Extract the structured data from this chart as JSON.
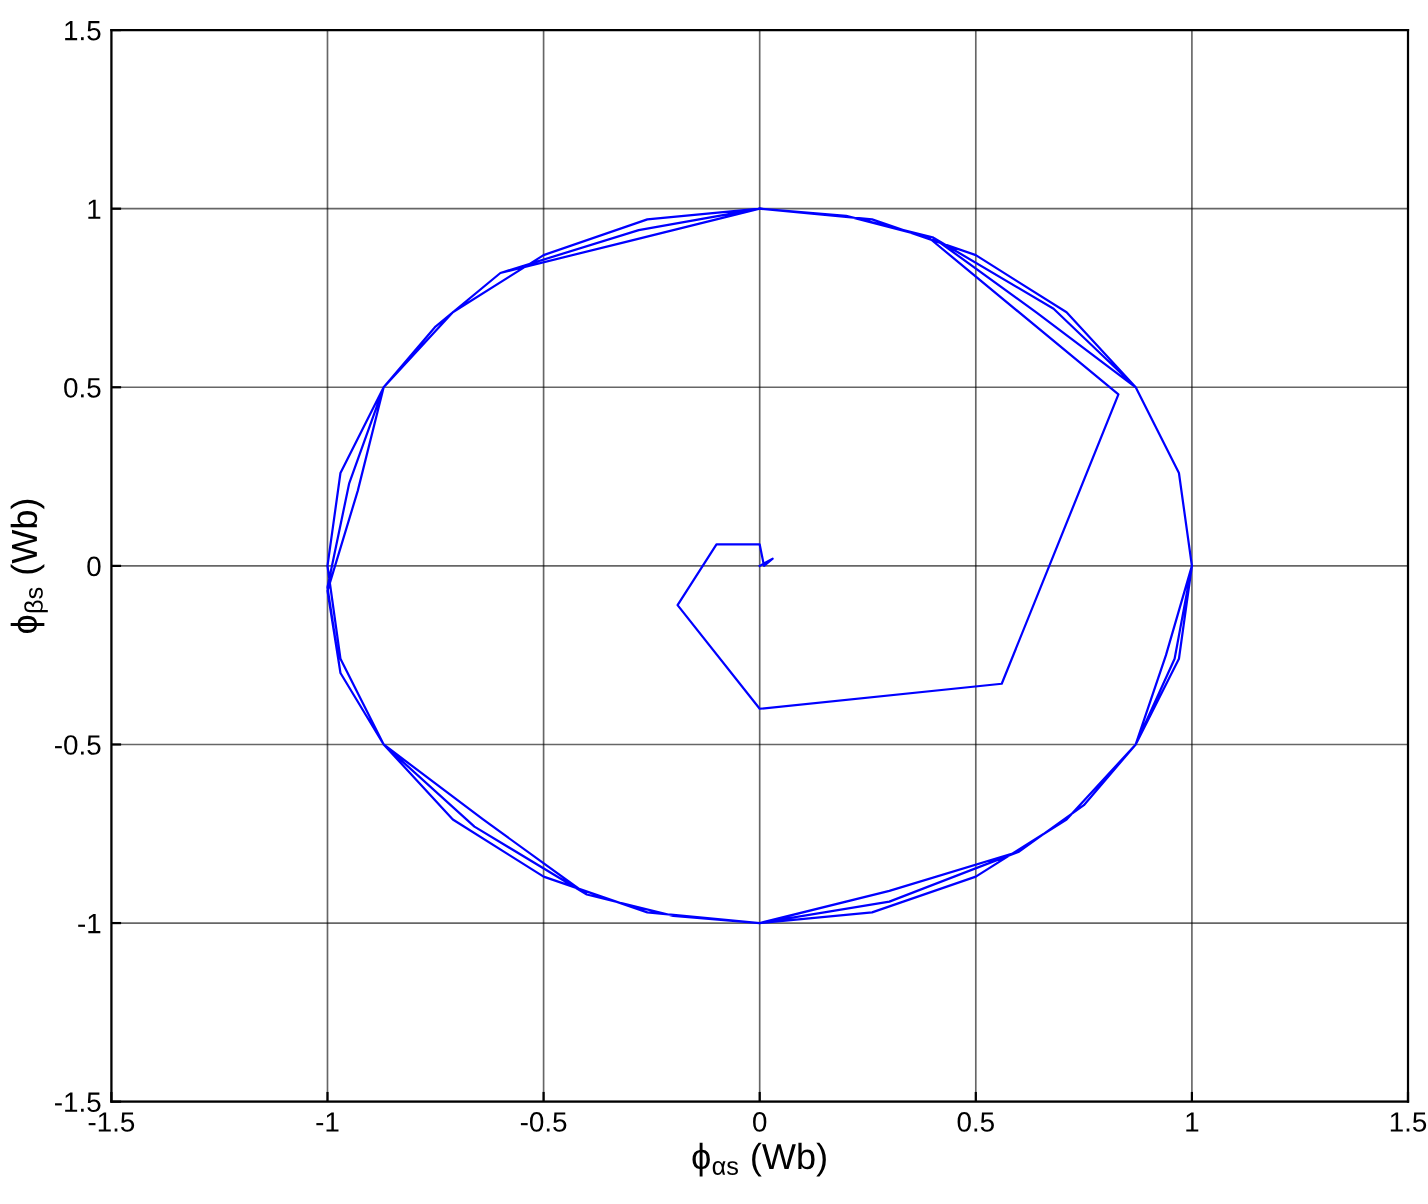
{
  "chart_data": {
    "type": "line",
    "xlabel": "ϕ$_{αs}$ (Wb)",
    "ylabel": "ϕ$_{βs}$ (Wb)",
    "xlim": [
      -1.5,
      1.5
    ],
    "ylim": [
      -1.5,
      1.5
    ],
    "xticks": [
      -1.5,
      -1,
      -0.5,
      0,
      0.5,
      1,
      1.5
    ],
    "yticks": [
      -1.5,
      -1,
      -0.5,
      0,
      0.5,
      1,
      1.5
    ],
    "grid": true,
    "marker": "none",
    "line_style": "solid",
    "series": [
      {
        "color": "#0000ff",
        "x": [
          0,
          0.03,
          0.01,
          0,
          -0.1,
          -0.19,
          0,
          0.56,
          0.83,
          0.39,
          0.2,
          0,
          -0.3,
          -0.6,
          -0.75,
          -0.87,
          -0.93,
          -1,
          -0.97,
          -0.87,
          -0.64,
          -0.4,
          -0.2,
          0,
          0.3,
          0.6,
          0.75,
          0.87,
          0.94,
          1,
          0.97,
          0.87,
          0.64,
          0.4,
          0.2,
          0,
          -0.28,
          -0.6,
          -0.75,
          -0.87,
          -0.95,
          -1,
          -0.97,
          -0.87,
          -0.66,
          -0.4,
          -0.2,
          0,
          0.3,
          0.6,
          0.75,
          0.87,
          0.96,
          1,
          0.97,
          0.87,
          0.68,
          0.4,
          0.2,
          0,
          -0.26,
          -0.5,
          -0.71,
          -0.87,
          -0.97,
          -1,
          -0.97,
          -0.87,
          -0.71,
          -0.5,
          -0.26,
          0,
          0.26,
          0.5,
          0.71,
          0.87,
          0.97,
          1,
          0.97,
          0.87,
          0.71,
          0.5,
          0.26,
          0
        ],
        "values": [
          0,
          0.02,
          0,
          0.06,
          0.06,
          -0.11,
          -0.4,
          -0.33,
          0.48,
          0.92,
          0.98,
          1,
          0.91,
          0.82,
          0.67,
          0.5,
          0.21,
          -0.07,
          -0.3,
          -0.5,
          -0.71,
          -0.92,
          -0.98,
          -1,
          -0.91,
          -0.8,
          -0.67,
          -0.5,
          -0.25,
          0,
          0.26,
          0.5,
          0.71,
          0.92,
          0.98,
          1,
          0.94,
          0.82,
          0.67,
          0.5,
          0.23,
          -0.06,
          -0.3,
          -0.5,
          -0.73,
          -0.92,
          -0.98,
          -1,
          -0.94,
          -0.8,
          -0.67,
          -0.5,
          -0.26,
          0,
          0.26,
          0.5,
          0.72,
          0.92,
          0.98,
          1,
          0.97,
          0.87,
          0.71,
          0.5,
          0.26,
          0,
          -0.26,
          -0.5,
          -0.71,
          -0.87,
          -0.97,
          -1,
          -0.97,
          -0.87,
          -0.71,
          -0.5,
          -0.26,
          0,
          0.26,
          0.5,
          0.71,
          0.87,
          0.97,
          1
        ]
      }
    ]
  }
}
